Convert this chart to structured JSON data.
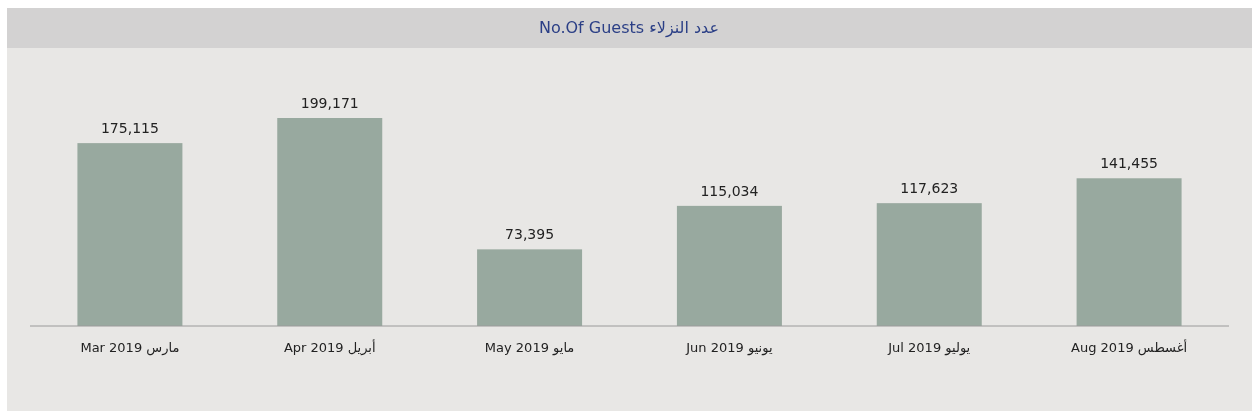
{
  "chart_data": {
    "type": "bar",
    "title": "No.Of Guests عدد النزلاء",
    "categories": [
      "Mar 2019 مارس",
      "Apr 2019 أبريل",
      "May 2019 مايو",
      "Jun 2019 يونيو",
      "Jul 2019 يوليو",
      "Aug 2019 أغسطس"
    ],
    "values": [
      175115,
      199171,
      73395,
      115034,
      117623,
      141455
    ],
    "value_labels": [
      "175,115",
      "199,171",
      "73,395",
      "115,034",
      "117,623",
      "141,455"
    ],
    "color": "#98a99f"
  }
}
